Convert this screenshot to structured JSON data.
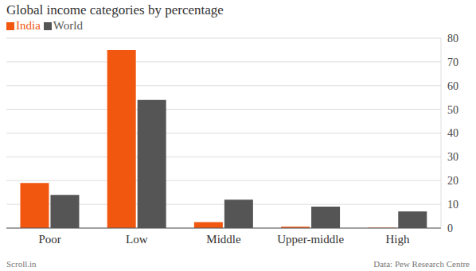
{
  "chart_data": {
    "type": "bar",
    "title": "Global income categories by percentage",
    "categories": [
      "Poor",
      "Low",
      "Middle",
      "Upper-middle",
      "High"
    ],
    "series": [
      {
        "name": "India",
        "color": "#f2570f",
        "values": [
          19,
          75,
          2.5,
          0.6,
          0.2
        ]
      },
      {
        "name": "World",
        "color": "#555555",
        "values": [
          14,
          54,
          12,
          9,
          7
        ]
      }
    ],
    "ylim": [
      0,
      80
    ],
    "yticks": [
      0,
      10,
      20,
      30,
      40,
      50,
      60,
      70,
      80
    ],
    "grid": true,
    "legend": "top left",
    "credit": "Scroll.in",
    "source": "Data: Pew Research Centre"
  }
}
